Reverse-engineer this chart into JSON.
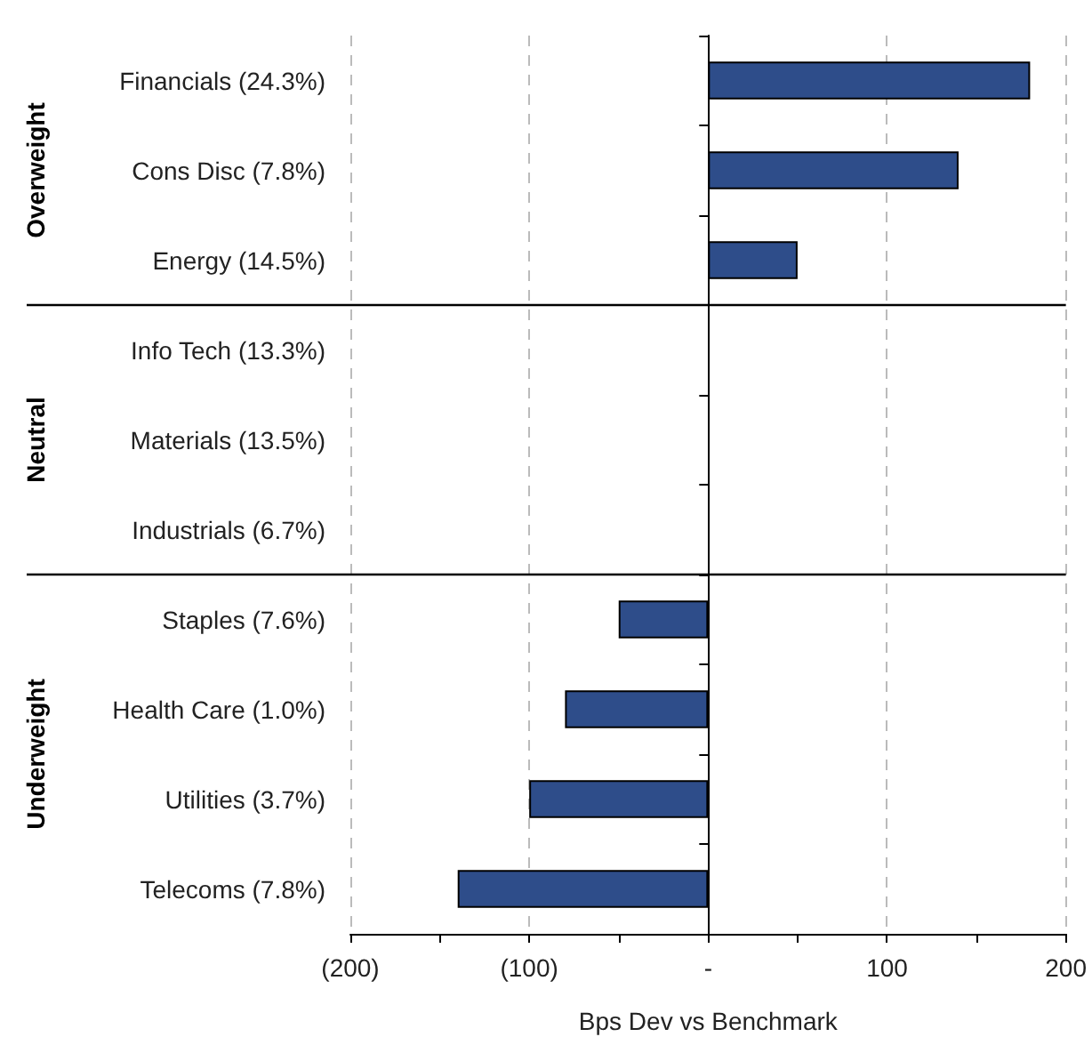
{
  "chart_data": {
    "type": "bar",
    "orientation": "horizontal",
    "xlabel": "Bps Dev vs Benchmark",
    "categories": [
      "Financials (24.3%)",
      "Cons Disc (7.8%)",
      "Energy (14.5%)",
      "Info Tech (13.3%)",
      "Materials (13.5%)",
      "Industrials (6.7%)",
      "Staples (7.6%)",
      "Health Care (1.0%)",
      "Utilities (3.7%)",
      "Telecoms (7.8%)"
    ],
    "values": [
      180,
      140,
      50,
      0,
      0,
      0,
      -50,
      -80,
      -100,
      -140
    ],
    "color": "#2e4d8a",
    "xlim": [
      -200,
      200
    ],
    "xticks": [
      {
        "value": -200,
        "label": "(200)"
      },
      {
        "value": -150,
        "label": null
      },
      {
        "value": -100,
        "label": "(100)"
      },
      {
        "value": -50,
        "label": null
      },
      {
        "value": 0,
        "label": "-"
      },
      {
        "value": 50,
        "label": null
      },
      {
        "value": 100,
        "label": "100"
      },
      {
        "value": 150,
        "label": null
      },
      {
        "value": 200,
        "label": "200"
      }
    ],
    "grid": "x",
    "annotations": [
      "Overweight",
      "Neutral",
      "Underweight"
    ]
  }
}
